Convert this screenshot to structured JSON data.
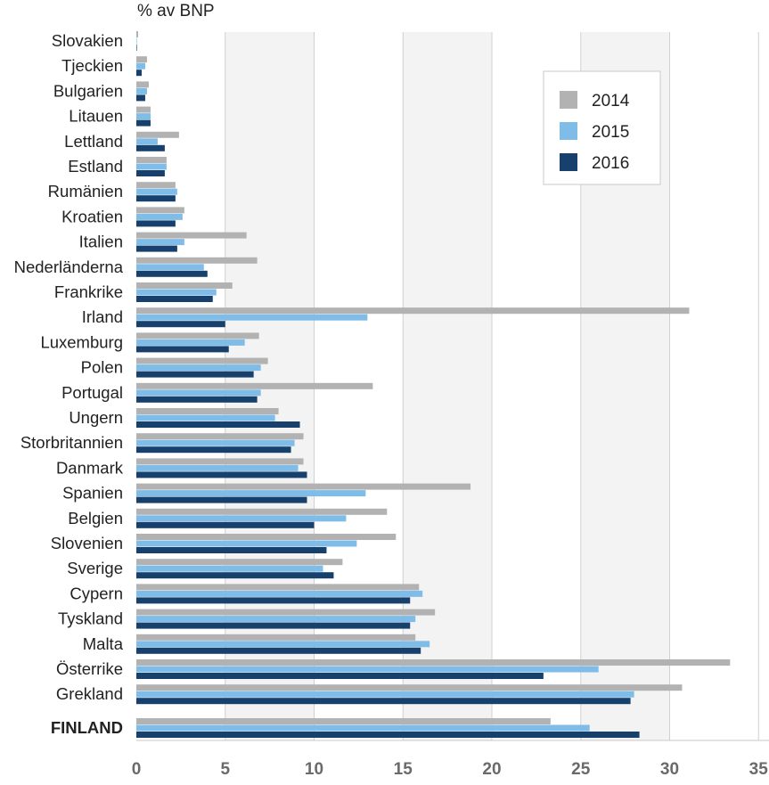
{
  "chart_data": {
    "type": "bar",
    "orientation": "horizontal",
    "unit_label": "% av BNP",
    "categories": [
      "Slovakien",
      "Tjeckien",
      "Bulgarien",
      "Litauen",
      "Lettland",
      "Estland",
      "Rumänien",
      "Kroatien",
      "Italien",
      "Nederländerna",
      "Frankrike",
      "Irland",
      "Luxemburg",
      "Polen",
      "Portugal",
      "Ungern",
      "Storbritannien",
      "Danmark",
      "Spanien",
      "Belgien",
      "Slovenien",
      "Sverige",
      "Cypern",
      "Tyskland",
      "Malta",
      "Österrike",
      "Grekland",
      "FINLAND"
    ],
    "highlight_category": "FINLAND",
    "series": [
      {
        "name": "2014",
        "color": "#b2b2b2",
        "values": [
          0.1,
          0.6,
          0.7,
          0.8,
          2.4,
          1.7,
          2.2,
          2.7,
          6.2,
          6.8,
          5.4,
          31.1,
          6.9,
          7.4,
          13.3,
          8.0,
          9.4,
          9.4,
          18.8,
          14.1,
          14.6,
          11.6,
          15.9,
          16.8,
          15.7,
          33.4,
          30.7,
          23.3
        ]
      },
      {
        "name": "2015",
        "color": "#7fbde8",
        "values": [
          0.0,
          0.5,
          0.6,
          0.8,
          1.2,
          1.7,
          2.3,
          2.6,
          2.7,
          3.8,
          4.5,
          13.0,
          6.1,
          7.0,
          7.0,
          7.8,
          8.9,
          9.1,
          12.9,
          11.8,
          12.4,
          10.5,
          16.1,
          15.7,
          16.5,
          26.0,
          28.0,
          25.5
        ]
      },
      {
        "name": "2016",
        "color": "#17416c",
        "values": [
          0.0,
          0.3,
          0.5,
          0.8,
          1.6,
          1.6,
          2.2,
          2.2,
          2.3,
          4.0,
          4.3,
          5.0,
          5.2,
          6.6,
          6.8,
          9.2,
          8.7,
          9.6,
          9.6,
          10.0,
          10.7,
          11.1,
          15.4,
          15.4,
          16.0,
          22.9,
          27.8,
          28.3
        ]
      }
    ],
    "x_ticks": [
      "0",
      "5",
      "10",
      "15",
      "20",
      "25",
      "30",
      "35"
    ],
    "xlim": [
      0,
      35
    ],
    "grid": "vertical",
    "legend_position": "top-right"
  }
}
